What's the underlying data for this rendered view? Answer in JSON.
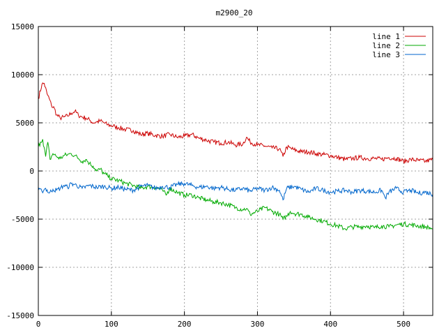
{
  "chart_data": {
    "type": "line",
    "title": "m2900_20",
    "xlabel": "",
    "ylabel": "",
    "xlim": [
      0,
      540
    ],
    "ylim": [
      -15000,
      15000
    ],
    "xticks": [
      0,
      100,
      200,
      300,
      400,
      500
    ],
    "yticks": [
      -15000,
      -10000,
      -5000,
      0,
      5000,
      10000,
      15000
    ],
    "grid": true,
    "legend_position": "top-right",
    "series": [
      {
        "name": "line 1",
        "color": "#cc0000",
        "x": [
          0,
          5,
          8,
          12,
          15,
          18,
          22,
          25,
          30,
          35,
          40,
          45,
          50,
          55,
          60,
          65,
          70,
          75,
          80,
          85,
          90,
          95,
          100,
          105,
          110,
          120,
          130,
          140,
          150,
          160,
          170,
          180,
          190,
          200,
          210,
          220,
          230,
          240,
          250,
          260,
          270,
          280,
          285,
          290,
          300,
          310,
          320,
          330,
          335,
          340,
          350,
          360,
          370,
          380,
          390,
          400,
          410,
          420,
          430,
          440,
          450,
          460,
          470,
          480,
          490,
          500,
          510,
          520,
          530,
          540
        ],
        "y": [
          7500,
          9000,
          9100,
          8000,
          7500,
          6800,
          6500,
          5800,
          5500,
          5600,
          5700,
          6000,
          6200,
          5800,
          5600,
          5500,
          5300,
          5000,
          5100,
          5200,
          5000,
          4800,
          4700,
          4600,
          4500,
          4300,
          4200,
          3800,
          3900,
          3700,
          3600,
          3800,
          3500,
          3600,
          3800,
          3400,
          3200,
          3000,
          2900,
          3000,
          2700,
          2800,
          3500,
          3000,
          2700,
          2600,
          2400,
          2300,
          1500,
          2500,
          2200,
          2000,
          2000,
          1800,
          1700,
          1600,
          1400,
          1200,
          1300,
          1400,
          1300,
          1300,
          1200,
          1400,
          1300,
          1000,
          1200,
          1100,
          1000,
          1200
        ]
      },
      {
        "name": "line 2",
        "color": "#00aa00",
        "x": [
          0,
          3,
          6,
          10,
          13,
          16,
          20,
          25,
          30,
          35,
          40,
          45,
          50,
          55,
          60,
          65,
          70,
          75,
          80,
          85,
          90,
          95,
          100,
          110,
          120,
          130,
          140,
          150,
          160,
          170,
          175,
          180,
          190,
          200,
          210,
          220,
          230,
          240,
          250,
          260,
          270,
          280,
          285,
          290,
          300,
          310,
          320,
          330,
          335,
          340,
          345,
          350,
          360,
          370,
          380,
          390,
          400,
          410,
          420,
          430,
          440,
          450,
          460,
          470,
          480,
          490,
          500,
          510,
          520,
          530,
          540
        ],
        "y": [
          2500,
          3000,
          3300,
          1500,
          3000,
          1200,
          1800,
          1500,
          1300,
          1600,
          1700,
          1800,
          1600,
          1300,
          1000,
          1200,
          800,
          500,
          0,
          200,
          -300,
          -500,
          -800,
          -1000,
          -1300,
          -1500,
          -1800,
          -1600,
          -1700,
          -2000,
          -2500,
          -1800,
          -2200,
          -2500,
          -2500,
          -2800,
          -3000,
          -3200,
          -3300,
          -3500,
          -3800,
          -4000,
          -3900,
          -4500,
          -4200,
          -3800,
          -4200,
          -4500,
          -5000,
          -4700,
          -4200,
          -4400,
          -4500,
          -4800,
          -5000,
          -5200,
          -5500,
          -5700,
          -6000,
          -5800,
          -5800,
          -5700,
          -5900,
          -5700,
          -5800,
          -5600,
          -5500,
          -5600,
          -5700,
          -5800,
          -6000
        ]
      },
      {
        "name": "line 3",
        "color": "#0066cc",
        "x": [
          0,
          5,
          10,
          15,
          20,
          25,
          30,
          35,
          40,
          45,
          50,
          60,
          70,
          80,
          90,
          100,
          110,
          120,
          130,
          140,
          150,
          160,
          170,
          180,
          190,
          200,
          210,
          220,
          230,
          240,
          250,
          260,
          270,
          280,
          290,
          300,
          310,
          320,
          330,
          335,
          340,
          350,
          360,
          370,
          380,
          390,
          400,
          410,
          420,
          430,
          440,
          450,
          460,
          470,
          475,
          480,
          490,
          500,
          510,
          520,
          530,
          540
        ],
        "y": [
          -2000,
          -2100,
          -1800,
          -2300,
          -1900,
          -2000,
          -1800,
          -1500,
          -1700,
          -1300,
          -1400,
          -1800,
          -1500,
          -1700,
          -1600,
          -1800,
          -1700,
          -1900,
          -2000,
          -1600,
          -1500,
          -1800,
          -1600,
          -1700,
          -1400,
          -1300,
          -1500,
          -1700,
          -1600,
          -1800,
          -1700,
          -1900,
          -2000,
          -1800,
          -2100,
          -1800,
          -2000,
          -1700,
          -2000,
          -3000,
          -1800,
          -1600,
          -1900,
          -2200,
          -1800,
          -2000,
          -2200,
          -2100,
          -2000,
          -2200,
          -2000,
          -2100,
          -2200,
          -2000,
          -2800,
          -2200,
          -1800,
          -2200,
          -2000,
          -2300,
          -2200,
          -2400
        ]
      }
    ]
  }
}
